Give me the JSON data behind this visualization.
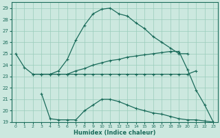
{
  "xlabel": "Humidex (Indice chaleur)",
  "bg_color": "#cce8df",
  "grid_color": "#99ccbb",
  "line_color": "#1a6b5a",
  "xlim": [
    -0.5,
    23.5
  ],
  "ylim": [
    19,
    29.5
  ],
  "yticks": [
    19,
    20,
    21,
    22,
    23,
    24,
    25,
    26,
    27,
    28,
    29
  ],
  "xticks": [
    0,
    1,
    2,
    3,
    4,
    5,
    6,
    7,
    8,
    9,
    10,
    11,
    12,
    13,
    14,
    15,
    16,
    17,
    18,
    19,
    20,
    21,
    22,
    23
  ],
  "curve_top_x": [
    3,
    4,
    5,
    6,
    7,
    8,
    9,
    10,
    11,
    12,
    13,
    14,
    15,
    16,
    17,
    18,
    19,
    20
  ],
  "curve_top_y": [
    23.2,
    23.2,
    23.5,
    24.5,
    26.2,
    27.5,
    28.5,
    28.9,
    29.0,
    28.5,
    28.3,
    27.7,
    27.2,
    26.5,
    26.0,
    25.5,
    25.0,
    25.0
  ],
  "curve_mid_x": [
    0,
    1,
    2,
    3,
    4,
    5,
    6,
    7,
    8,
    9,
    10,
    11,
    12,
    13,
    14,
    15,
    16,
    17,
    18,
    19,
    20,
    21,
    22,
    23
  ],
  "curve_mid_y": [
    25.0,
    23.8,
    23.2,
    23.2,
    23.2,
    23.2,
    23.2,
    23.5,
    23.7,
    24.0,
    24.2,
    24.4,
    24.5,
    24.7,
    24.8,
    24.9,
    25.0,
    25.1,
    25.2,
    25.2,
    23.6,
    21.8,
    20.5,
    19.0
  ],
  "curve_flat_x": [
    2,
    3,
    4,
    5,
    6,
    7,
    8,
    9,
    10,
    11,
    12,
    13,
    14,
    15,
    16,
    17,
    18,
    19,
    20,
    21
  ],
  "curve_flat_y": [
    23.2,
    23.2,
    23.2,
    23.2,
    23.2,
    23.2,
    23.2,
    23.2,
    23.2,
    23.2,
    23.2,
    23.2,
    23.2,
    23.2,
    23.2,
    23.2,
    23.2,
    23.2,
    23.2,
    23.5
  ],
  "curve_bot_x": [
    3,
    4,
    5,
    6,
    7,
    8,
    9,
    10,
    11,
    12,
    13,
    14,
    15,
    16,
    17,
    18,
    19,
    20,
    21,
    22,
    23
  ],
  "curve_bot_y": [
    21.5,
    19.3,
    19.2,
    19.2,
    19.2,
    20.0,
    20.5,
    21.0,
    21.0,
    20.8,
    20.5,
    20.2,
    20.0,
    19.8,
    19.7,
    19.5,
    19.3,
    19.2,
    19.2,
    19.1,
    19.0
  ]
}
